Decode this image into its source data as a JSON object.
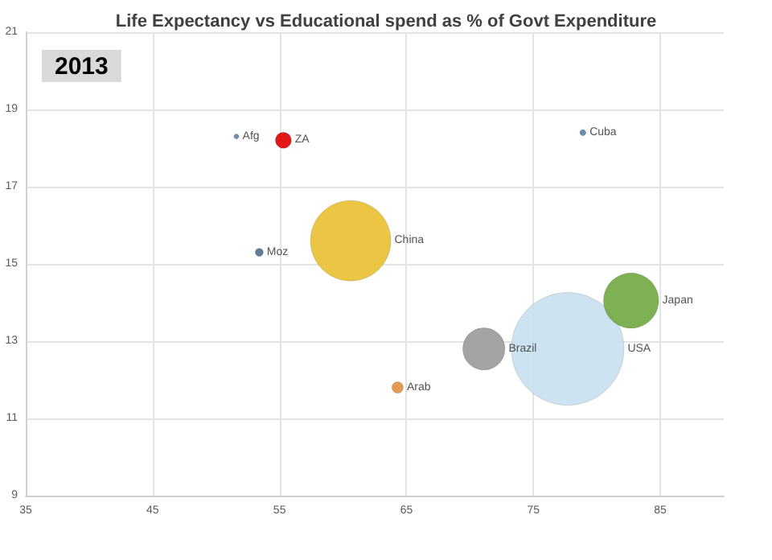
{
  "chart_data": {
    "type": "bubble",
    "title": "Life Expectancy vs Educational spend as % of Govt Expenditure",
    "annotations": [
      "2013"
    ],
    "series": [
      {
        "name": "Afg",
        "color": "#5b7fa5",
        "x": [
          51.6
        ],
        "values": [
          18.3
        ],
        "sizes": [
          0.002
        ]
      },
      {
        "name": "ZA",
        "color": "#e00000",
        "x": [
          55.3
        ],
        "values": [
          18.2
        ],
        "sizes": [
          0.02
        ]
      },
      {
        "name": "Moz",
        "color": "#4f6f8f",
        "x": [
          53.4
        ],
        "values": [
          15.3
        ],
        "sizes": [
          0.005
        ]
      },
      {
        "name": "China",
        "color": "#e8c030",
        "x": [
          60.6
        ],
        "values": [
          15.6
        ],
        "sizes": [
          0.51
        ]
      },
      {
        "name": "Cuba",
        "color": "#5b7fa5",
        "x": [
          78.9
        ],
        "values": [
          18.4
        ],
        "sizes": [
          0.003
        ]
      },
      {
        "name": "Japan",
        "color": "#70a840",
        "x": [
          82.7
        ],
        "values": [
          14.05
        ],
        "sizes": [
          0.24
        ]
      },
      {
        "name": "Brazil",
        "color": "#9a9a9a",
        "x": [
          71.1
        ],
        "values": [
          12.8
        ],
        "sizes": [
          0.14
        ]
      },
      {
        "name": "USA",
        "color": "#c8e0f0",
        "x": [
          77.7
        ],
        "values": [
          12.8
        ],
        "sizes": [
          1
        ]
      },
      {
        "name": "Arab",
        "color": "#e09040",
        "x": [
          64.3
        ],
        "values": [
          11.8
        ],
        "sizes": [
          0.01
        ]
      }
    ],
    "xlim": [
      35,
      90
    ],
    "xticks": [
      35,
      45,
      55,
      65,
      75,
      85
    ],
    "ylim": [
      9,
      21
    ],
    "yticks": [
      9,
      11,
      13,
      15,
      17,
      19,
      21
    ],
    "grid": true,
    "legend": false
  }
}
